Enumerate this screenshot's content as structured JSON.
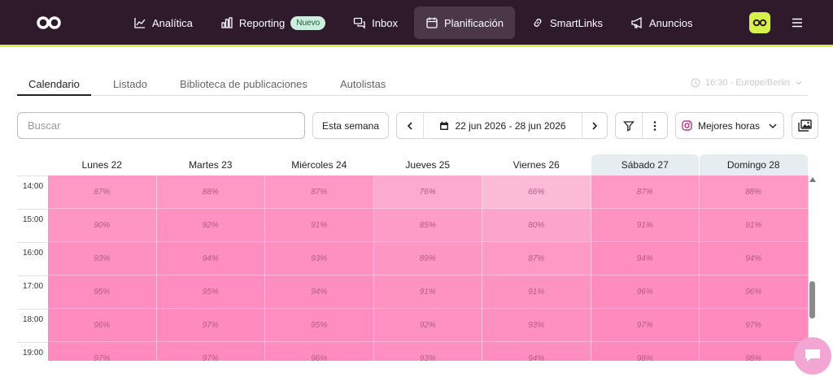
{
  "nav": {
    "items": [
      {
        "label": "Analítica",
        "icon": "chart-line-icon"
      },
      {
        "label": "Reporting",
        "icon": "bar-chart-icon",
        "badge": "Nuevo"
      },
      {
        "label": "Inbox",
        "icon": "chat-bubbles-icon"
      },
      {
        "label": "Planificación",
        "icon": "calendar-icon",
        "active": true
      },
      {
        "label": "SmartLinks",
        "icon": "link-icon"
      },
      {
        "label": "Anuncios",
        "icon": "megaphone-icon"
      }
    ]
  },
  "tabs": {
    "items": [
      "Calendario",
      "Listado",
      "Biblioteca de publicaciones",
      "Autolistas"
    ],
    "active": "Calendario",
    "timezone": "16:30 - Europe/Berlin"
  },
  "toolbar": {
    "search_placeholder": "Buscar",
    "this_week_label": "Esta semana",
    "date_range": "22 jun 2026 - 28 jun 2026",
    "best_times_label": "Mejores horas"
  },
  "calendar": {
    "days": [
      {
        "label": "Lunes 22",
        "weekend": false
      },
      {
        "label": "Martes 23",
        "weekend": false
      },
      {
        "label": "Miércoles 24",
        "weekend": false
      },
      {
        "label": "Jueves 25",
        "weekend": false
      },
      {
        "label": "Viernes 26",
        "weekend": false
      },
      {
        "label": "Sábado 27",
        "weekend": true
      },
      {
        "label": "Domingo 28",
        "weekend": true
      }
    ],
    "hours": [
      "14:00",
      "15:00",
      "16:00",
      "17:00",
      "18:00",
      "19:00"
    ],
    "scores": [
      [
        "87%",
        "88%",
        "87%",
        "76%",
        "66%",
        "87%",
        "88%"
      ],
      [
        "90%",
        "92%",
        "91%",
        "85%",
        "80%",
        "91%",
        "91%"
      ],
      [
        "93%",
        "94%",
        "93%",
        "89%",
        "87%",
        "94%",
        "94%"
      ],
      [
        "95%",
        "95%",
        "94%",
        "91%",
        "91%",
        "96%",
        "96%"
      ],
      [
        "96%",
        "97%",
        "95%",
        "92%",
        "93%",
        "97%",
        "97%"
      ],
      [
        "97%",
        "97%",
        "96%",
        "93%",
        "94%",
        "98%",
        "98%"
      ]
    ]
  },
  "colors": {
    "topbar": "#2e1a2b",
    "accent": "#d6f24a",
    "heat_low": "#fbbad6",
    "heat_high": "#ff88bd"
  }
}
